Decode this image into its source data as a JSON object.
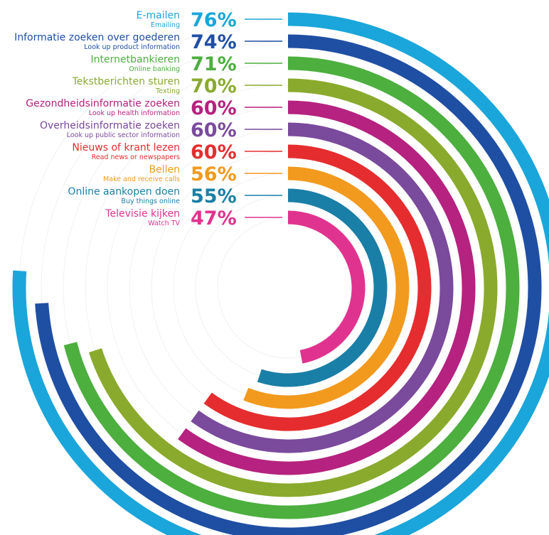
{
  "chart_data": {
    "type": "radial-bar",
    "title": "",
    "max_value": 100,
    "unit": "%",
    "series": [
      {
        "label_nl": "E-mailen",
        "label_en": "Emailing",
        "value": 76,
        "display": "76%",
        "color": "#1aa6da"
      },
      {
        "label_nl": "Informatie zoeken over goederen",
        "label_en": "Look up product information",
        "value": 74,
        "display": "74%",
        "color": "#1f4fa3"
      },
      {
        "label_nl": "Internetbankieren",
        "label_en": "Online banking",
        "value": 71,
        "display": "71%",
        "color": "#4caf3e"
      },
      {
        "label_nl": "Tekstberichten sturen",
        "label_en": "Texting",
        "value": 70,
        "display": "70%",
        "color": "#8aaa2e"
      },
      {
        "label_nl": "Gezondheidsinformatie zoeken",
        "label_en": "Look up health information",
        "value": 60,
        "display": "60%",
        "color": "#b5227f"
      },
      {
        "label_nl": "Overheidsinformatie zoeken",
        "label_en": "Look up public sector information",
        "value": 60,
        "display": "60%",
        "color": "#7a4a9c"
      },
      {
        "label_nl": "Nieuws of krant lezen",
        "label_en": "Read news or newspapers",
        "value": 60,
        "display": "60%",
        "color": "#e52d2f"
      },
      {
        "label_nl": "Bellen",
        "label_en": "Make and receive calls",
        "value": 56,
        "display": "56%",
        "color": "#f29a1e"
      },
      {
        "label_nl": "Online aankopen doen",
        "label_en": "Buy things online",
        "value": 55,
        "display": "55%",
        "color": "#1a7fa6"
      },
      {
        "label_nl": "Televisie kijken",
        "label_en": "Watch TV",
        "value": 47,
        "display": "47%",
        "color": "#e0338f"
      }
    ]
  }
}
